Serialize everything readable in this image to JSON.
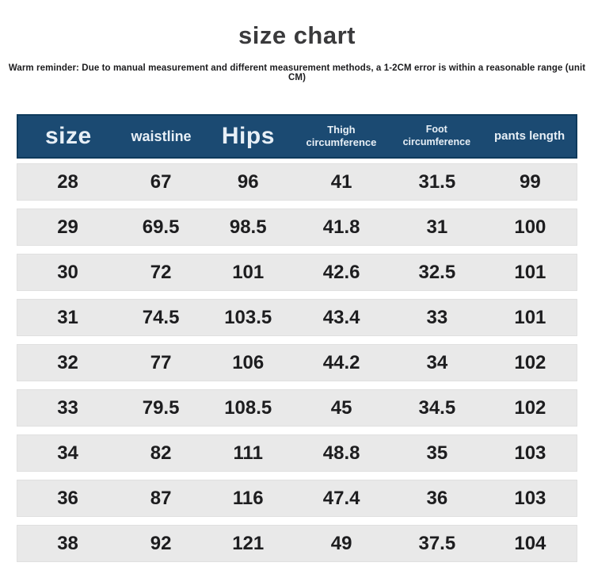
{
  "title": "size chart",
  "reminder": "Warm reminder: Due to manual measurement and different measurement methods, a 1-2CM error is within a reasonable range (unit CM)",
  "colors": {
    "header_bg": "#1b4a72",
    "header_border": "#0e3a5c",
    "header_text": "#e7eff6",
    "row_bg": "#e9e9e9",
    "body_text": "#1d1d1f",
    "title_text": "#3a3a3c"
  },
  "table": {
    "columns": [
      "size",
      "waistline",
      "Hips",
      "Thigh\ncircumference",
      "Foot\ncircumference",
      "pants length"
    ],
    "rows": [
      [
        "28",
        "67",
        "96",
        "41",
        "31.5",
        "99"
      ],
      [
        "29",
        "69.5",
        "98.5",
        "41.8",
        "31",
        "100"
      ],
      [
        "30",
        "72",
        "101",
        "42.6",
        "32.5",
        "101"
      ],
      [
        "31",
        "74.5",
        "103.5",
        "43.4",
        "33",
        "101"
      ],
      [
        "32",
        "77",
        "106",
        "44.2",
        "34",
        "102"
      ],
      [
        "33",
        "79.5",
        "108.5",
        "45",
        "34.5",
        "102"
      ],
      [
        "34",
        "82",
        "111",
        "48.8",
        "35",
        "103"
      ],
      [
        "36",
        "87",
        "116",
        "47.4",
        "36",
        "103"
      ],
      [
        "38",
        "92",
        "121",
        "49",
        "37.5",
        "104"
      ]
    ]
  },
  "chart_data": {
    "type": "table",
    "title": "size chart",
    "subtitle": "Warm reminder: Due to manual measurement and different measurement methods, a 1-2CM error is within a reasonable range (unit CM)",
    "unit": "CM",
    "columns": [
      "size",
      "waistline",
      "Hips",
      "Thigh circumference",
      "Foot circumference",
      "pants length"
    ],
    "rows": [
      [
        28,
        67,
        96,
        41,
        31.5,
        99
      ],
      [
        29,
        69.5,
        98.5,
        41.8,
        31,
        100
      ],
      [
        30,
        72,
        101,
        42.6,
        32.5,
        101
      ],
      [
        31,
        74.5,
        103.5,
        43.4,
        33,
        101
      ],
      [
        32,
        77,
        106,
        44.2,
        34,
        102
      ],
      [
        33,
        79.5,
        108.5,
        45,
        34.5,
        102
      ],
      [
        34,
        82,
        111,
        48.8,
        35,
        103
      ],
      [
        36,
        87,
        116,
        47.4,
        36,
        103
      ],
      [
        38,
        92,
        121,
        49,
        37.5,
        104
      ]
    ]
  }
}
